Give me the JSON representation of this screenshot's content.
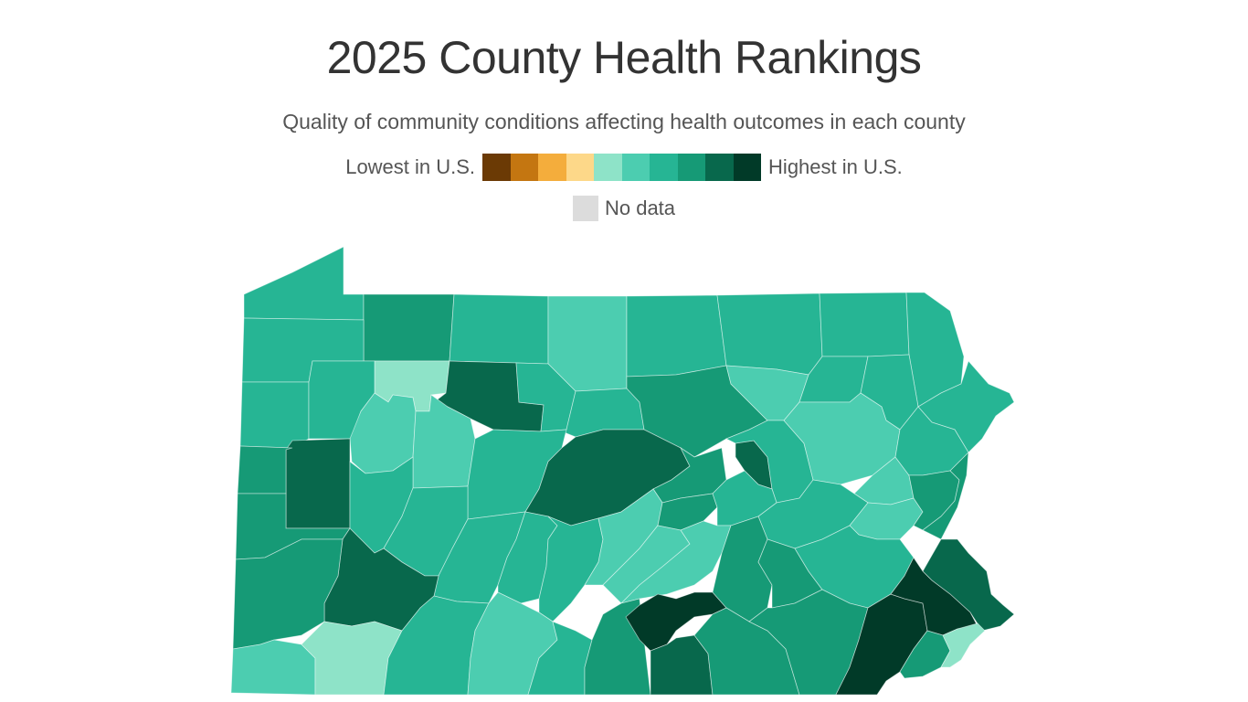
{
  "title": "2025 County Health Rankings",
  "subtitle": "Quality of community conditions affecting health outcomes in each county",
  "legend": {
    "low_label": "Lowest in U.S.",
    "high_label": "Highest in U.S.",
    "no_data_label": "No data",
    "no_data_color": "#dcdcdc",
    "scale_colors": [
      "#6b3a05",
      "#c47611",
      "#f4ad3c",
      "#fdd889",
      "#8ee3c8",
      "#4ccdb0",
      "#26b594",
      "#169a76",
      "#08684c",
      "#013a28"
    ]
  },
  "map": {
    "region": "Pennsylvania",
    "regions": [
      {
        "name": "erie",
        "level": 6
      },
      {
        "name": "warren",
        "level": 7
      },
      {
        "name": "mckean",
        "level": 6
      },
      {
        "name": "potter",
        "level": 5
      },
      {
        "name": "tioga",
        "level": 6
      },
      {
        "name": "bradford",
        "level": 6
      },
      {
        "name": "susquehanna",
        "level": 6
      },
      {
        "name": "wayne",
        "level": 6
      },
      {
        "name": "crawford",
        "level": 6
      },
      {
        "name": "forest",
        "level": 4
      },
      {
        "name": "elk",
        "level": 8
      },
      {
        "name": "cameron",
        "level": 6
      },
      {
        "name": "clinton",
        "level": 6
      },
      {
        "name": "lycoming",
        "level": 7
      },
      {
        "name": "sullivan",
        "level": 5
      },
      {
        "name": "wyoming",
        "level": 6
      },
      {
        "name": "lackawanna",
        "level": 6
      },
      {
        "name": "pike",
        "level": 6
      },
      {
        "name": "mercer",
        "level": 6
      },
      {
        "name": "venango",
        "level": 6
      },
      {
        "name": "clarion",
        "level": 5
      },
      {
        "name": "jefferson",
        "level": 5
      },
      {
        "name": "clearfield",
        "level": 6
      },
      {
        "name": "centre",
        "level": 8
      },
      {
        "name": "union",
        "level": 7
      },
      {
        "name": "montour",
        "level": 8
      },
      {
        "name": "columbia",
        "level": 6
      },
      {
        "name": "luzerne",
        "level": 5
      },
      {
        "name": "carbon",
        "level": 5
      },
      {
        "name": "monroe",
        "level": 6
      },
      {
        "name": "lawrence",
        "level": 8
      },
      {
        "name": "butler",
        "level": 6
      },
      {
        "name": "armstrong",
        "level": 6
      },
      {
        "name": "indiana",
        "level": 6
      },
      {
        "name": "cambria",
        "level": 6
      },
      {
        "name": "blair",
        "level": 6
      },
      {
        "name": "huntingdon",
        "level": 5
      },
      {
        "name": "mifflin",
        "level": 7
      },
      {
        "name": "snyder",
        "level": 6
      },
      {
        "name": "northumberland",
        "level": 6
      },
      {
        "name": "schuylkill",
        "level": 5
      },
      {
        "name": "lehigh",
        "level": 7
      },
      {
        "name": "northampton",
        "level": 7
      },
      {
        "name": "beaver",
        "level": 7
      },
      {
        "name": "allegheny",
        "level": 7
      },
      {
        "name": "westmoreland",
        "level": 8
      },
      {
        "name": "washington",
        "level": 7
      },
      {
        "name": "greene",
        "level": 5
      },
      {
        "name": "fayette",
        "level": 4
      },
      {
        "name": "somerset",
        "level": 6
      },
      {
        "name": "bedford",
        "level": 5
      },
      {
        "name": "fulton",
        "level": 6
      },
      {
        "name": "juniata",
        "level": 5
      },
      {
        "name": "perry",
        "level": 5
      },
      {
        "name": "franklin",
        "level": 7
      },
      {
        "name": "cumberland",
        "level": 9
      },
      {
        "name": "dauphin",
        "level": 7
      },
      {
        "name": "lebanon",
        "level": 7
      },
      {
        "name": "berks",
        "level": 6
      },
      {
        "name": "bucks",
        "level": 8
      },
      {
        "name": "adams",
        "level": 8
      },
      {
        "name": "york",
        "level": 7
      },
      {
        "name": "lancaster",
        "level": 7
      },
      {
        "name": "chester",
        "level": 9
      },
      {
        "name": "montgomery",
        "level": 9
      },
      {
        "name": "delaware",
        "level": 7
      },
      {
        "name": "philadelphia",
        "level": 4
      }
    ]
  }
}
